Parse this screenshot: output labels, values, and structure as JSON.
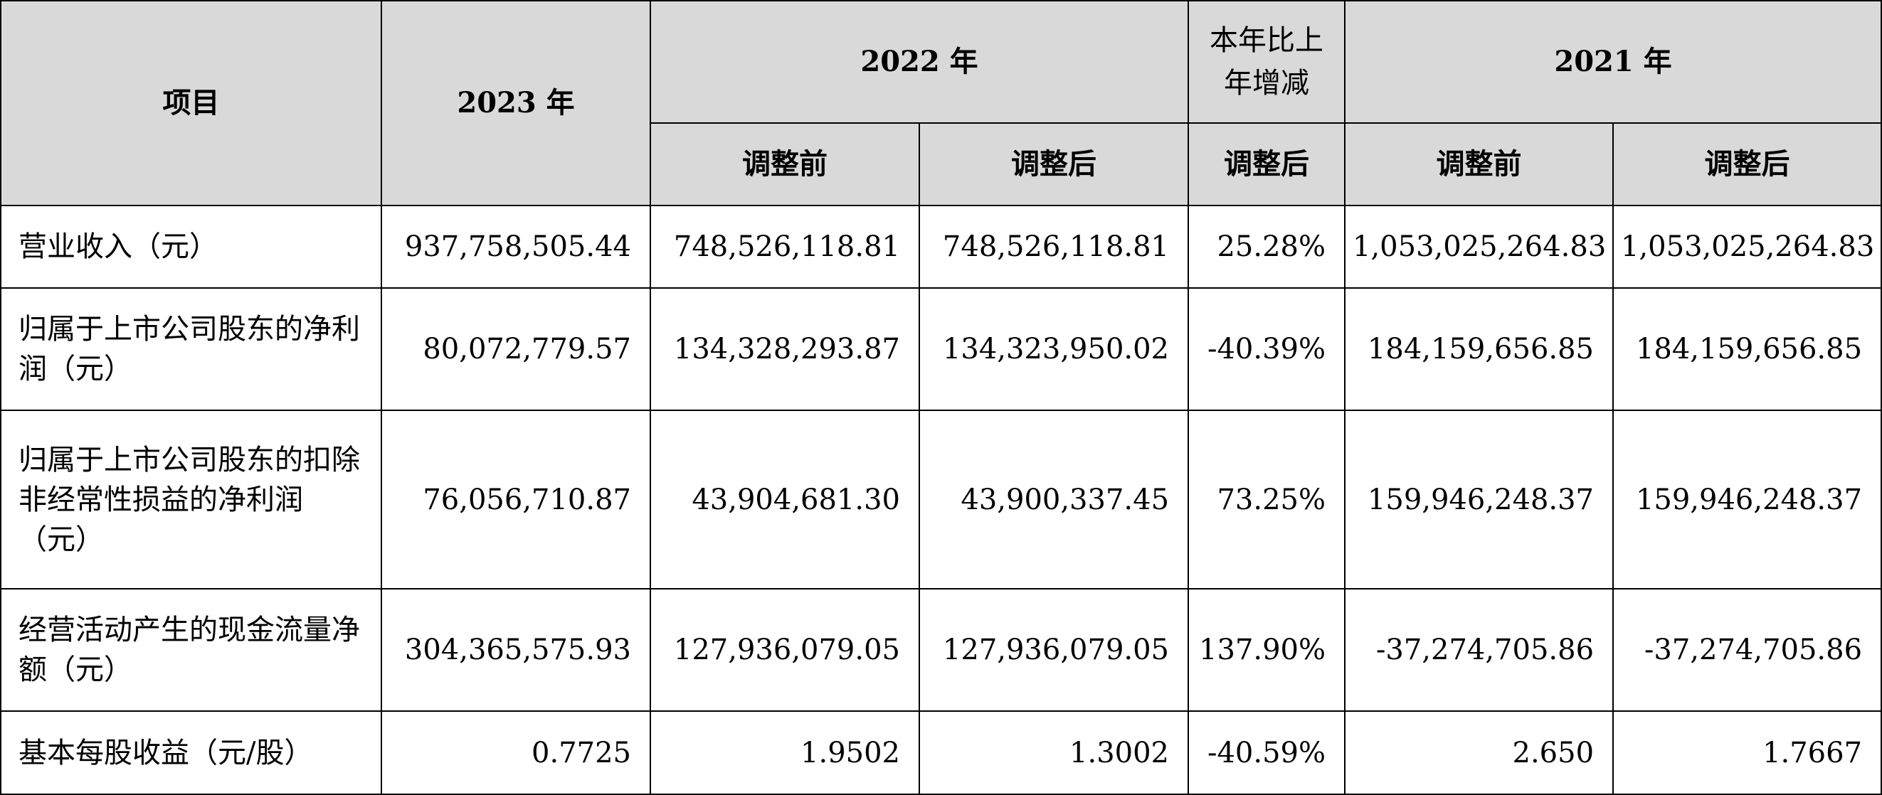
{
  "header": {
    "item": "项目",
    "y2023": "2023 年",
    "y2022": "2022 年",
    "change_line1": "本年比上",
    "change_line2": "年增减",
    "y2021": "2021 年",
    "before_adj": "调整前",
    "after_adj": "调整后"
  },
  "rows": [
    {
      "label": "营业收入（元）",
      "v2023": "937,758,505.44",
      "v2022_before": "748,526,118.81",
      "v2022_after": "748,526,118.81",
      "change": "25.28%",
      "v2021_before": "1,053,025,264.83",
      "v2021_after": "1,053,025,264.83"
    },
    {
      "label": "归属于上市公司股东的净利润（元）",
      "v2023": "80,072,779.57",
      "v2022_before": "134,328,293.87",
      "v2022_after": "134,323,950.02",
      "change": "-40.39%",
      "v2021_before": "184,159,656.85",
      "v2021_after": "184,159,656.85"
    },
    {
      "label": "归属于上市公司股东的扣除非经常性损益的净利润（元）",
      "v2023": "76,056,710.87",
      "v2022_before": "43,904,681.30",
      "v2022_after": "43,900,337.45",
      "change": "73.25%",
      "v2021_before": "159,946,248.37",
      "v2021_after": "159,946,248.37"
    },
    {
      "label": "经营活动产生的现金流量净额（元）",
      "v2023": "304,365,575.93",
      "v2022_before": "127,936,079.05",
      "v2022_after": "127,936,079.05",
      "change": "137.90%",
      "v2021_before": "-37,274,705.86",
      "v2021_after": "-37,274,705.86"
    },
    {
      "label": "基本每股收益（元/股）",
      "v2023": "0.7725",
      "v2022_before": "1.9502",
      "v2022_after": "1.3002",
      "change": "-40.59%",
      "v2021_before": "2.650",
      "v2021_after": "1.7667"
    }
  ]
}
